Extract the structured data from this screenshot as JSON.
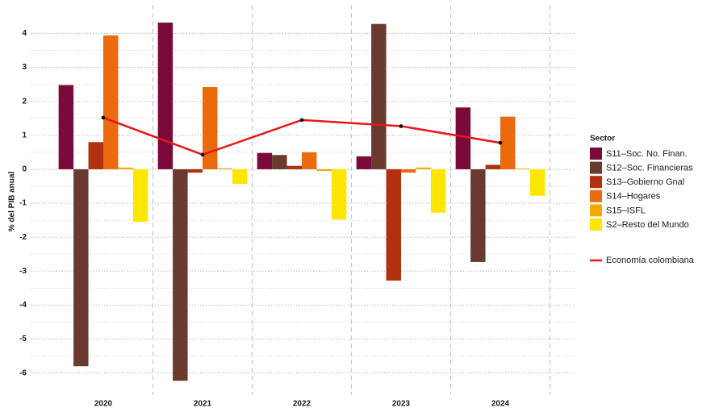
{
  "chart_data": {
    "type": "bar",
    "y_label": "% del PIB anual",
    "legend_title": "Sector",
    "categories": [
      "2020",
      "2021",
      "2022",
      "2023",
      "2024"
    ],
    "series": [
      {
        "name": "S11–Soc. No. Finan.",
        "color": "#7a0a3a",
        "values": [
          2.48,
          4.32,
          0.48,
          0.38,
          1.82
        ]
      },
      {
        "name": "S12–Soc. Financieras",
        "color": "#6b3a2e",
        "values": [
          -5.8,
          -6.23,
          0.42,
          4.28,
          -2.73
        ]
      },
      {
        "name": "S13–Gobierno Gnal",
        "color": "#b0300f",
        "values": [
          0.8,
          -0.1,
          0.1,
          -3.28,
          0.13
        ]
      },
      {
        "name": "S14–Hogares",
        "color": "#ec6a0e",
        "values": [
          3.94,
          2.42,
          0.5,
          -0.1,
          1.55
        ]
      },
      {
        "name": "S15–ISFL",
        "color": "#f5a800",
        "values": [
          0.05,
          0.03,
          -0.05,
          0.05,
          0.02
        ]
      },
      {
        "name": "S2–Resto del Mundo",
        "color": "#ffe600",
        "values": [
          -1.55,
          -0.43,
          -1.48,
          -1.28,
          -0.78
        ]
      }
    ],
    "line_series": {
      "type": "line",
      "name": "Economía colombiana",
      "color": "#e8161a",
      "values": [
        1.52,
        0.43,
        1.45,
        1.27,
        0.78
      ]
    },
    "ylim": [
      -6.65,
      4.7
    ],
    "yticks": [
      -6,
      -5,
      -4,
      -3,
      -2,
      -1,
      0,
      1,
      2,
      3,
      4
    ],
    "grid": true
  }
}
